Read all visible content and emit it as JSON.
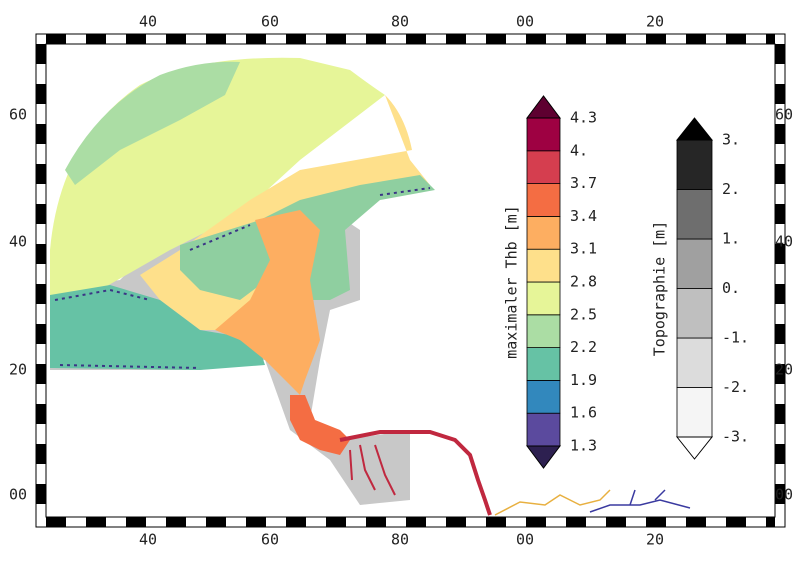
{
  "map": {
    "x_labels": [
      "40",
      "60",
      "80",
      "00",
      "20"
    ],
    "y_labels": [
      "60",
      "40",
      "20",
      "00"
    ],
    "colorbars": [
      {
        "title": "maximaler Thb [m]",
        "levels": [
          "1.3",
          "1.6",
          "1.9",
          "2.2",
          "2.5",
          "2.8",
          "3.1",
          "3.4",
          "3.7",
          "4.",
          "4.3"
        ],
        "colors": [
          "#5b4a9e",
          "#3288bd",
          "#66c2a5",
          "#abdda4",
          "#e6f598",
          "#fee08b",
          "#fdae61",
          "#f46d43",
          "#d53e4f",
          "#9e0142"
        ],
        "under": "#2d2050",
        "over": "#5e0030"
      },
      {
        "title": "Topographie [m]",
        "levels": [
          "-3.",
          "-2.",
          "-1.",
          "0.",
          "1.",
          "2.",
          "3."
        ],
        "colors": [
          "#f5f5f5",
          "#dcdcdc",
          "#bfbfbf",
          "#a0a0a0",
          "#6e6e6e",
          "#262626"
        ],
        "under": "#ffffff",
        "over": "#000000"
      }
    ]
  }
}
